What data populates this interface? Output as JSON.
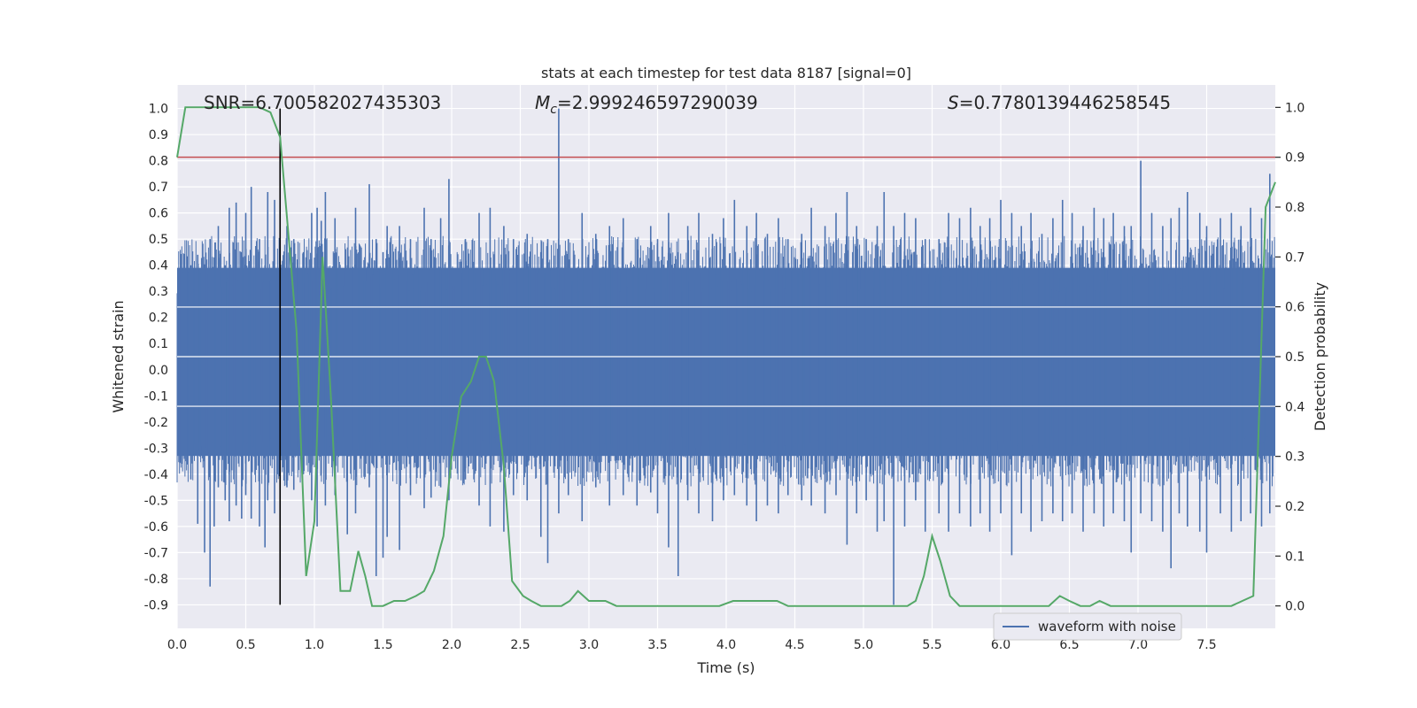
{
  "chart_data": {
    "type": "line",
    "title": "stats at each timestep for test data 8187 [signal=0]",
    "xlabel": "Time (s)",
    "ylabel": "Whitened strain",
    "y2label": "Detection probability",
    "xlim": [
      0.0,
      8.0
    ],
    "ylim": [
      -0.99,
      1.09
    ],
    "y2lim": [
      -0.045,
      1.045
    ],
    "xticks": [
      "0.0",
      "0.5",
      "1.0",
      "1.5",
      "2.0",
      "2.5",
      "3.0",
      "3.5",
      "4.0",
      "4.5",
      "5.0",
      "5.5",
      "6.0",
      "6.5",
      "7.0",
      "7.5"
    ],
    "yticks": [
      "1.0",
      "0.9",
      "0.8",
      "0.7",
      "0.6",
      "0.5",
      "0.4",
      "0.3",
      "0.2",
      "0.1",
      "0.0",
      "-0.1",
      "-0.2",
      "-0.3",
      "-0.4",
      "-0.5",
      "-0.6",
      "-0.7",
      "-0.8",
      "-0.9"
    ],
    "y2ticks": [
      "1.0",
      "0.9",
      "0.8",
      "0.7",
      "0.6",
      "0.5",
      "0.4",
      "0.3",
      "0.2",
      "0.1",
      "0.0"
    ],
    "annotations": {
      "snr": "SNR=6.700582027435303",
      "mc_symbol": "M",
      "mc_sub": "c",
      "mc_value": "=2.999246597290039",
      "s_symbol": "S",
      "s_value": "=0.7780139446258545"
    },
    "threshold": {
      "value": 0.9,
      "color": "#c44e52"
    },
    "marker_time": 0.75,
    "marker_range": [
      -0.9,
      1.0
    ],
    "legend": {
      "entries": [
        "waveform with noise"
      ],
      "placement": "lower right"
    },
    "grid": true,
    "series": [
      {
        "name": "waveform with noise",
        "color": "#4c72b0",
        "axis": "left",
        "kind": "noise-band",
        "band": [
          -0.33,
          0.39
        ],
        "spikes": [
          [
            0.03,
            0.39,
            -0.36
          ],
          [
            0.1,
            0.4,
            -0.42
          ],
          [
            0.15,
            0.44,
            -0.59
          ],
          [
            0.2,
            0.3,
            -0.7
          ],
          [
            0.24,
            0.5,
            -0.83
          ],
          [
            0.27,
            0.43,
            -0.6
          ],
          [
            0.3,
            0.55,
            -0.45
          ],
          [
            0.35,
            0.4,
            -0.5
          ],
          [
            0.38,
            0.62,
            -0.58
          ],
          [
            0.43,
            0.64,
            -0.52
          ],
          [
            0.47,
            0.45,
            -0.57
          ],
          [
            0.5,
            0.6,
            -0.48
          ],
          [
            0.54,
            0.7,
            -0.57
          ],
          [
            0.6,
            0.5,
            -0.6
          ],
          [
            0.64,
            0.4,
            -0.68
          ],
          [
            0.66,
            0.68,
            -0.5
          ],
          [
            0.71,
            0.65,
            -0.55
          ],
          [
            0.8,
            0.55,
            -0.45
          ],
          [
            0.85,
            0.5,
            -0.46
          ],
          [
            0.92,
            0.45,
            -0.4
          ],
          [
            0.98,
            0.6,
            -0.5
          ],
          [
            1.02,
            0.62,
            -0.6
          ],
          [
            1.05,
            0.57,
            -0.4
          ],
          [
            1.08,
            0.68,
            -0.52
          ],
          [
            1.15,
            0.58,
            -0.48
          ],
          [
            1.24,
            0.4,
            -0.63
          ],
          [
            1.3,
            0.62,
            -0.55
          ],
          [
            1.4,
            0.71,
            -0.45
          ],
          [
            1.45,
            0.5,
            -0.79
          ],
          [
            1.5,
            0.45,
            -0.72
          ],
          [
            1.53,
            0.55,
            -0.64
          ],
          [
            1.62,
            0.55,
            -0.69
          ],
          [
            1.7,
            0.5,
            -0.48
          ],
          [
            1.8,
            0.62,
            -0.53
          ],
          [
            1.85,
            0.5,
            -0.49
          ],
          [
            1.92,
            0.58,
            -0.45
          ],
          [
            1.98,
            0.73,
            -0.5
          ],
          [
            2.1,
            0.5,
            -0.42
          ],
          [
            2.2,
            0.6,
            -0.52
          ],
          [
            2.28,
            0.62,
            -0.6
          ],
          [
            2.38,
            0.55,
            -0.62
          ],
          [
            2.45,
            0.5,
            -0.48
          ],
          [
            2.55,
            0.52,
            -0.5
          ],
          [
            2.65,
            0.45,
            -0.64
          ],
          [
            2.7,
            0.5,
            -0.74
          ],
          [
            2.78,
            1.0,
            -0.55
          ],
          [
            2.85,
            0.5,
            -0.48
          ],
          [
            2.95,
            0.6,
            -0.58
          ],
          [
            3.05,
            0.52,
            -0.45
          ],
          [
            3.15,
            0.55,
            -0.52
          ],
          [
            3.25,
            0.58,
            -0.48
          ],
          [
            3.35,
            0.5,
            -0.52
          ],
          [
            3.45,
            0.55,
            -0.47
          ],
          [
            3.5,
            0.5,
            -0.55
          ],
          [
            3.58,
            0.6,
            -0.68
          ],
          [
            3.65,
            0.45,
            -0.79
          ],
          [
            3.72,
            0.55,
            -0.5
          ],
          [
            3.8,
            0.6,
            -0.55
          ],
          [
            3.9,
            0.52,
            -0.58
          ],
          [
            3.98,
            0.58,
            -0.5
          ],
          [
            4.06,
            0.65,
            -0.48
          ],
          [
            4.15,
            0.55,
            -0.52
          ],
          [
            4.22,
            0.6,
            -0.58
          ],
          [
            4.3,
            0.52,
            -0.52
          ],
          [
            4.38,
            0.58,
            -0.55
          ],
          [
            4.45,
            0.5,
            -0.48
          ],
          [
            4.55,
            0.52,
            -0.5
          ],
          [
            4.62,
            0.62,
            -0.52
          ],
          [
            4.72,
            0.55,
            -0.55
          ],
          [
            4.8,
            0.6,
            -0.48
          ],
          [
            4.88,
            0.68,
            -0.67
          ],
          [
            4.95,
            0.55,
            -0.55
          ],
          [
            5.02,
            0.5,
            -0.5
          ],
          [
            5.1,
            0.55,
            -0.62
          ],
          [
            5.15,
            0.68,
            -0.58
          ],
          [
            5.22,
            0.55,
            -0.9
          ],
          [
            5.3,
            0.6,
            -0.6
          ],
          [
            5.38,
            0.58,
            -0.5
          ],
          [
            5.45,
            0.5,
            -0.62
          ],
          [
            5.55,
            0.5,
            -0.55
          ],
          [
            5.62,
            0.6,
            -0.62
          ],
          [
            5.7,
            0.58,
            -0.55
          ],
          [
            5.78,
            0.62,
            -0.6
          ],
          [
            5.85,
            0.55,
            -0.55
          ],
          [
            5.92,
            0.58,
            -0.62
          ],
          [
            6.0,
            0.65,
            -0.55
          ],
          [
            6.08,
            0.6,
            -0.71
          ],
          [
            6.15,
            0.55,
            -0.55
          ],
          [
            6.22,
            0.6,
            -0.62
          ],
          [
            6.3,
            0.52,
            -0.58
          ],
          [
            6.38,
            0.58,
            -0.55
          ],
          [
            6.45,
            0.65,
            -0.58
          ],
          [
            6.52,
            0.6,
            -0.55
          ],
          [
            6.6,
            0.55,
            -0.62
          ],
          [
            6.68,
            0.62,
            -0.55
          ],
          [
            6.75,
            0.58,
            -0.6
          ],
          [
            6.82,
            0.6,
            -0.55
          ],
          [
            6.9,
            0.55,
            -0.58
          ],
          [
            6.95,
            0.55,
            -0.7
          ],
          [
            7.02,
            0.8,
            -0.55
          ],
          [
            7.1,
            0.6,
            -0.58
          ],
          [
            7.18,
            0.55,
            -0.62
          ],
          [
            7.24,
            0.58,
            -0.76
          ],
          [
            7.3,
            0.62,
            -0.55
          ],
          [
            7.36,
            0.68,
            -0.6
          ],
          [
            7.45,
            0.6,
            -0.62
          ],
          [
            7.5,
            0.55,
            -0.7
          ],
          [
            7.6,
            0.58,
            -0.55
          ],
          [
            7.68,
            0.6,
            -0.62
          ],
          [
            7.75,
            0.55,
            -0.58
          ],
          [
            7.82,
            0.62,
            -0.55
          ],
          [
            7.9,
            0.58,
            -0.6
          ],
          [
            7.96,
            0.75,
            -0.55
          ]
        ]
      },
      {
        "name": "",
        "color": "#55a868",
        "axis": "right",
        "x": [
          0.0,
          0.06,
          0.12,
          0.2,
          0.3,
          0.4,
          0.5,
          0.6,
          0.68,
          0.75,
          0.8,
          0.87,
          0.94,
          1.0,
          1.06,
          1.12,
          1.19,
          1.26,
          1.32,
          1.37,
          1.42,
          1.5,
          1.58,
          1.66,
          1.74,
          1.8,
          1.87,
          1.94,
          2.0,
          2.07,
          2.14,
          2.2,
          2.25,
          2.31,
          2.38,
          2.44,
          2.52,
          2.58,
          2.65,
          2.72,
          2.8,
          2.86,
          2.92,
          2.96,
          3.0,
          3.06,
          3.12,
          3.2,
          3.26,
          3.35,
          3.5,
          3.6,
          3.7,
          3.8,
          3.95,
          4.05,
          4.12,
          4.2,
          4.28,
          4.37,
          4.45,
          4.55,
          4.7,
          4.85,
          4.93,
          5.0,
          5.1,
          5.17,
          5.25,
          5.32,
          5.38,
          5.44,
          5.5,
          5.56,
          5.63,
          5.7,
          5.8,
          6.0,
          6.2,
          6.35,
          6.43,
          6.5,
          6.58,
          6.65,
          6.72,
          6.8,
          6.95,
          7.1,
          7.2,
          7.28,
          7.35,
          7.42,
          7.5,
          7.6,
          7.68,
          7.76,
          7.84,
          7.93,
          8.0
        ],
        "values": [
          0.9,
          1.0,
          1.0,
          1.0,
          1.0,
          1.0,
          1.0,
          1.0,
          0.99,
          0.94,
          0.78,
          0.55,
          0.06,
          0.17,
          0.7,
          0.42,
          0.03,
          0.03,
          0.11,
          0.06,
          0.0,
          0.0,
          0.01,
          0.01,
          0.02,
          0.03,
          0.07,
          0.14,
          0.3,
          0.42,
          0.45,
          0.5,
          0.5,
          0.45,
          0.28,
          0.05,
          0.02,
          0.01,
          0.0,
          0.0,
          0.0,
          0.01,
          0.03,
          0.02,
          0.01,
          0.01,
          0.01,
          0.0,
          0.0,
          0.0,
          0.0,
          0.0,
          0.0,
          0.0,
          0.0,
          0.01,
          0.01,
          0.01,
          0.01,
          0.01,
          0.0,
          0.0,
          0.0,
          0.0,
          0.0,
          0.0,
          0.0,
          0.0,
          0.0,
          0.0,
          0.01,
          0.06,
          0.14,
          0.09,
          0.02,
          0.0,
          0.0,
          0.0,
          0.0,
          0.0,
          0.02,
          0.01,
          0.0,
          0.0,
          0.01,
          0.0,
          0.0,
          0.0,
          0.0,
          0.0,
          0.0,
          0.0,
          0.0,
          0.0,
          0.0,
          0.01,
          0.02,
          0.8,
          0.85
        ]
      }
    ]
  }
}
